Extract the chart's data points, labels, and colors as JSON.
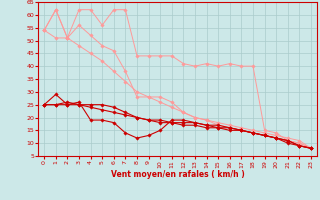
{
  "background_color": "#cce8e8",
  "grid_color": "#aacccc",
  "xlabel": "Vent moyen/en rafales ( km/h )",
  "xlim": [
    -0.5,
    23.5
  ],
  "ylim": [
    5,
    65
  ],
  "yticks": [
    5,
    10,
    15,
    20,
    25,
    30,
    35,
    40,
    45,
    50,
    55,
    60,
    65
  ],
  "xticks": [
    0,
    1,
    2,
    3,
    4,
    5,
    6,
    7,
    8,
    9,
    10,
    11,
    12,
    13,
    14,
    15,
    16,
    17,
    18,
    19,
    20,
    21,
    22,
    23
  ],
  "light_lines": [
    {
      "x": [
        0,
        1,
        2,
        3,
        4,
        5,
        6,
        7,
        8,
        9,
        10,
        11,
        12,
        13,
        14,
        15,
        16,
        17,
        18,
        19,
        20,
        21,
        22,
        23
      ],
      "y": [
        54,
        62,
        51,
        62,
        62,
        56,
        62,
        62,
        44,
        44,
        44,
        44,
        41,
        40,
        41,
        40,
        41,
        40,
        40,
        15,
        14,
        11,
        10,
        8
      ]
    },
    {
      "x": [
        0,
        1,
        2,
        3,
        4,
        5,
        6,
        7,
        8,
        9,
        10,
        11,
        12,
        13,
        14,
        15,
        16,
        17,
        18,
        19,
        20,
        21,
        22,
        23
      ],
      "y": [
        54,
        62,
        51,
        56,
        52,
        48,
        46,
        38,
        28,
        28,
        28,
        26,
        22,
        20,
        19,
        17,
        16,
        15,
        14,
        13,
        12,
        11,
        10,
        8
      ]
    },
    {
      "x": [
        0,
        1,
        2,
        3,
        4,
        5,
        6,
        7,
        8,
        9,
        10,
        11,
        12,
        13,
        14,
        15,
        16,
        17,
        18,
        19,
        20,
        21,
        22,
        23
      ],
      "y": [
        54,
        51,
        51,
        48,
        45,
        42,
        38,
        34,
        30,
        28,
        26,
        24,
        22,
        20,
        19,
        18,
        17,
        16,
        15,
        14,
        13,
        12,
        11,
        8
      ]
    }
  ],
  "dark_lines": [
    {
      "x": [
        0,
        1,
        2,
        3,
        4,
        5,
        6,
        7,
        8,
        9,
        10,
        11,
        12,
        13,
        14,
        15,
        16,
        17,
        18,
        19,
        20,
        21,
        22,
        23
      ],
      "y": [
        25,
        25,
        25,
        25,
        25,
        25,
        24,
        22,
        20,
        19,
        19,
        18,
        18,
        18,
        17,
        17,
        16,
        15,
        14,
        13,
        12,
        11,
        9,
        8
      ]
    },
    {
      "x": [
        0,
        1,
        2,
        3,
        4,
        5,
        6,
        7,
        8,
        9,
        10,
        11,
        12,
        13,
        14,
        15,
        16,
        17,
        18,
        19,
        20,
        21,
        22,
        23
      ],
      "y": [
        25,
        29,
        25,
        26,
        19,
        19,
        18,
        14,
        12,
        13,
        15,
        19,
        19,
        18,
        17,
        16,
        16,
        15,
        14,
        13,
        12,
        11,
        9,
        8
      ]
    },
    {
      "x": [
        0,
        1,
        2,
        3,
        4,
        5,
        6,
        7,
        8,
        9,
        10,
        11,
        12,
        13,
        14,
        15,
        16,
        17,
        18,
        19,
        20,
        21,
        22,
        23
      ],
      "y": [
        25,
        25,
        26,
        25,
        24,
        23,
        22,
        21,
        20,
        19,
        18,
        18,
        17,
        17,
        16,
        16,
        15,
        15,
        14,
        13,
        12,
        10,
        9,
        8
      ]
    }
  ],
  "light_color": "#ff9999",
  "dark_color": "#cc0000",
  "marker": "D",
  "marker_size": 1.8,
  "linewidth_light": 0.7,
  "linewidth_dark": 0.8,
  "tick_fontsize": 4.5,
  "xlabel_fontsize": 5.5
}
